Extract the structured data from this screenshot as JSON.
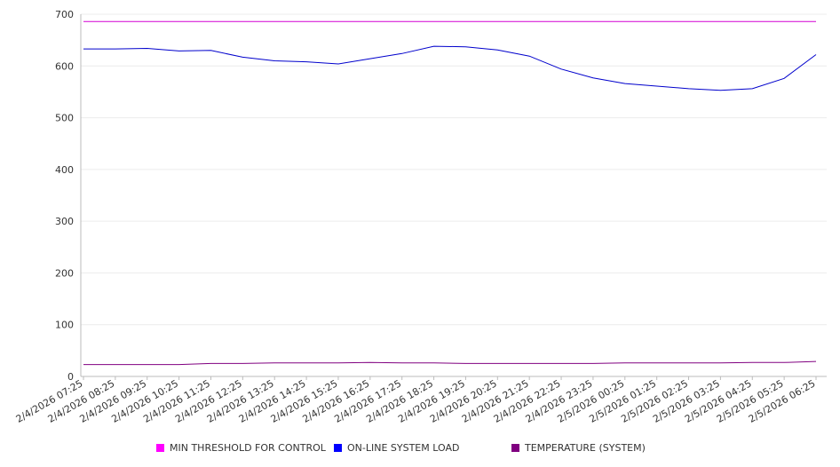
{
  "chart_data": {
    "type": "line",
    "title": "",
    "xlabel": "",
    "ylabel": "",
    "ylim": [
      0,
      700
    ],
    "yticks": [
      0,
      100,
      200,
      300,
      400,
      500,
      600,
      700
    ],
    "grid": true,
    "legend_position": "bottom",
    "categories": [
      "2/4/2026 07:25",
      "2/4/2026 08:25",
      "2/4/2026 09:25",
      "2/4/2026 10:25",
      "2/4/2026 11:25",
      "2/4/2026 12:25",
      "2/4/2026 13:25",
      "2/4/2026 14:25",
      "2/4/2026 15:25",
      "2/4/2026 16:25",
      "2/4/2026 17:25",
      "2/4/2026 18:25",
      "2/4/2026 19:25",
      "2/4/2026 20:25",
      "2/4/2026 21:25",
      "2/4/2026 22:25",
      "2/4/2026 23:25",
      "2/5/2026 00:25",
      "2/5/2026 01:25",
      "2/5/2026 02:25",
      "2/5/2026 03:25",
      "2/5/2026 04:25",
      "2/5/2026 05:25",
      "2/5/2026 06:25"
    ],
    "series": [
      {
        "name": "MIN THRESHOLD FOR CONTROL",
        "color": "#d400d4",
        "values": [
          686,
          686,
          686,
          686,
          686,
          686,
          686,
          686,
          686,
          686,
          686,
          686,
          686,
          686,
          686,
          686,
          686,
          686,
          686,
          686,
          686,
          686,
          686,
          686
        ]
      },
      {
        "name": "ON-LINE SYSTEM LOAD",
        "color": "#0000cc",
        "values": [
          633,
          633,
          634,
          629,
          630,
          617,
          610,
          608,
          604,
          614,
          624,
          638,
          637,
          631,
          619,
          594,
          577,
          566,
          561,
          556,
          553,
          556,
          576,
          622
        ]
      },
      {
        "name": "TEMPERATURE (SYSTEM)",
        "color": "#800080",
        "values": [
          23,
          23,
          23,
          23,
          25,
          25,
          26,
          26,
          26,
          27,
          26,
          26,
          25,
          25,
          25,
          25,
          25,
          26,
          26,
          26,
          26,
          27,
          27,
          29
        ]
      }
    ]
  }
}
